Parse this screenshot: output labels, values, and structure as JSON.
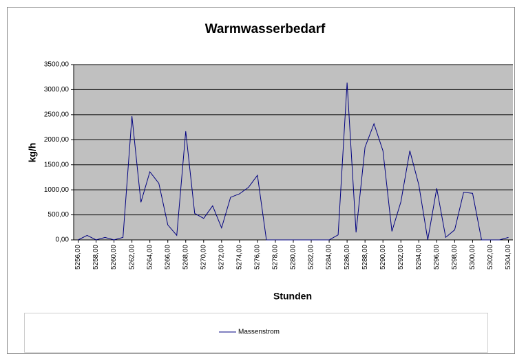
{
  "chart_data": {
    "type": "line",
    "title": "Warmwasserbedarf",
    "x_label": "Stunden",
    "y_label": "kg/h",
    "x": [
      5256,
      5257,
      5258,
      5259,
      5260,
      5261,
      5262,
      5263,
      5264,
      5265,
      5266,
      5267,
      5268,
      5269,
      5270,
      5271,
      5272,
      5273,
      5274,
      5275,
      5276,
      5277,
      5278,
      5279,
      5280,
      5281,
      5282,
      5283,
      5284,
      5285,
      5286,
      5287,
      5288,
      5289,
      5290,
      5291,
      5292,
      5293,
      5294,
      5295,
      5296,
      5297,
      5298,
      5299,
      5300,
      5301,
      5302,
      5303,
      5304
    ],
    "series": [
      {
        "name": "Massenstrom",
        "color": "#000080",
        "values": [
          0,
          90,
          0,
          50,
          0,
          50,
          2470,
          750,
          1360,
          1130,
          300,
          90,
          2170,
          530,
          430,
          680,
          240,
          850,
          920,
          1050,
          1290,
          0,
          0,
          0,
          0,
          0,
          0,
          0,
          0,
          100,
          3140,
          150,
          1850,
          2320,
          1780,
          170,
          760,
          1780,
          1100,
          0,
          1030,
          50,
          200,
          950,
          930,
          0,
          0,
          0,
          50
        ]
      }
    ],
    "xlim": [
      5255.5,
      5304.5
    ],
    "xticks": [
      {
        "value": 5256,
        "label": "5256,00"
      },
      {
        "value": 5258,
        "label": "5258,00"
      },
      {
        "value": 5260,
        "label": "5260,00"
      },
      {
        "value": 5262,
        "label": "5262,00"
      },
      {
        "value": 5264,
        "label": "5264,00"
      },
      {
        "value": 5266,
        "label": "5266,00"
      },
      {
        "value": 5268,
        "label": "5268,00"
      },
      {
        "value": 5270,
        "label": "5270,00"
      },
      {
        "value": 5272,
        "label": "5272,00"
      },
      {
        "value": 5274,
        "label": "5274,00"
      },
      {
        "value": 5276,
        "label": "5276,00"
      },
      {
        "value": 5278,
        "label": "5278,00"
      },
      {
        "value": 5280,
        "label": "5280,00"
      },
      {
        "value": 5282,
        "label": "5282,00"
      },
      {
        "value": 5284,
        "label": "5284,00"
      },
      {
        "value": 5286,
        "label": "5286,00"
      },
      {
        "value": 5288,
        "label": "5288,00"
      },
      {
        "value": 5290,
        "label": "5290,00"
      },
      {
        "value": 5292,
        "label": "5292,00"
      },
      {
        "value": 5294,
        "label": "5294,00"
      },
      {
        "value": 5296,
        "label": "5296,00"
      },
      {
        "value": 5298,
        "label": "5298,00"
      },
      {
        "value": 5300,
        "label": "5300,00"
      },
      {
        "value": 5302,
        "label": "5302,00"
      },
      {
        "value": 5304,
        "label": "5304,00"
      }
    ],
    "ylim": [
      0,
      3500
    ],
    "yticks": [
      {
        "value": 0,
        "label": "0,00"
      },
      {
        "value": 500,
        "label": "500,00"
      },
      {
        "value": 1000,
        "label": "1000,00"
      },
      {
        "value": 1500,
        "label": "1500,00"
      },
      {
        "value": 2000,
        "label": "2000,00"
      },
      {
        "value": 2500,
        "label": "2500,00"
      },
      {
        "value": 3000,
        "label": "3000,00"
      },
      {
        "value": 3500,
        "label": "3500,00"
      }
    ],
    "grid": true,
    "background": "#c0c0c0",
    "legend": "bottom"
  }
}
